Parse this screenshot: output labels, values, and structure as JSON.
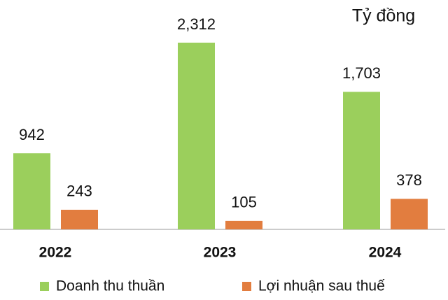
{
  "chart_data": {
    "type": "bar",
    "unit_label": "Tỷ đồng",
    "categories": [
      "2022",
      "2023",
      "2024"
    ],
    "series": [
      {
        "name": "Doanh thu thuần",
        "color": "#9bcf5c",
        "values": [
          942,
          2312,
          1703
        ],
        "value_labels": [
          "942",
          "2,312",
          "1,703"
        ]
      },
      {
        "name": "Lợi nhuận sau thuế",
        "color": "#e27d3f",
        "values": [
          243,
          105,
          378
        ]
      }
    ]
  }
}
